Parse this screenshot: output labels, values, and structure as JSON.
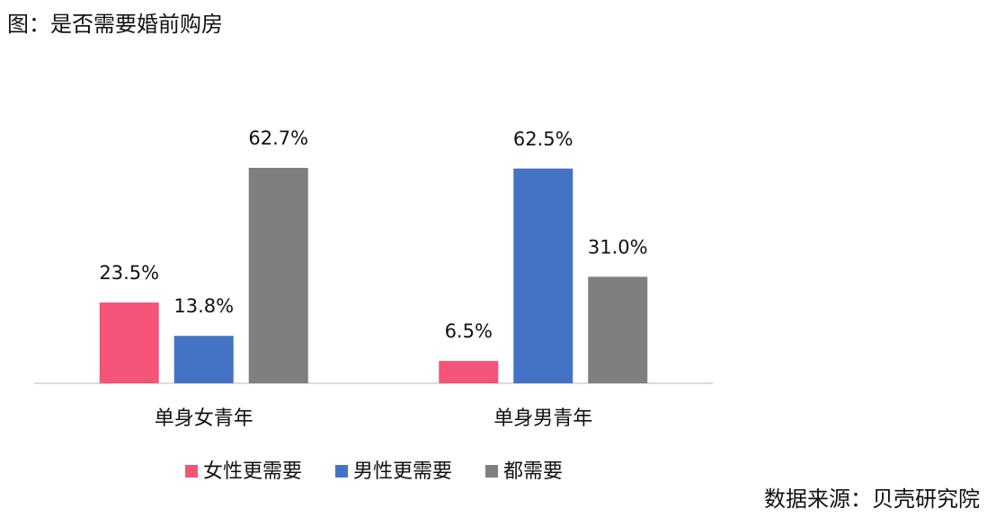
{
  "chart_data": {
    "type": "bar",
    "title": "图：是否需要婚前购房",
    "source": "数据来源：贝壳研究院",
    "categories": [
      "单身女青年",
      "单身男青年"
    ],
    "series": [
      {
        "name": "女性更需要",
        "color": "#f45478",
        "values": [
          23.5,
          6.5
        ],
        "value_labels": [
          "23.5%",
          "6.5%"
        ]
      },
      {
        "name": "男性更需要",
        "color": "#4472c4",
        "values": [
          13.8,
          62.5
        ],
        "value_labels": [
          "13.8%",
          "62.5%"
        ]
      },
      {
        "name": "都需要",
        "color": "#7f7f7f",
        "values": [
          62.7,
          31.0
        ],
        "value_labels": [
          "62.7%",
          "31.0%"
        ]
      }
    ]
  }
}
